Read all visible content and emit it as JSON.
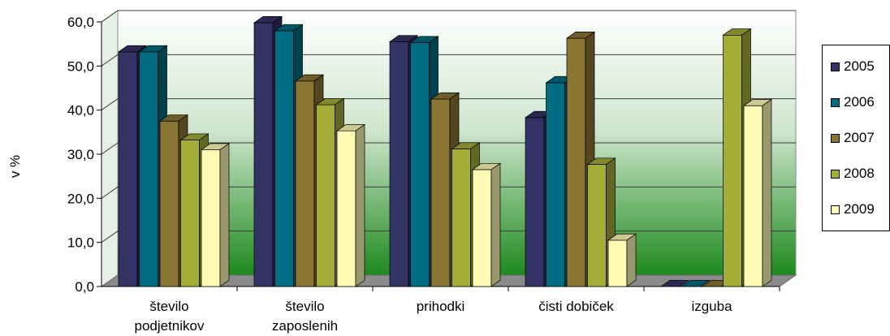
{
  "chart_data": {
    "type": "bar",
    "title": "",
    "xlabel": "",
    "ylabel": "v %",
    "ylim": [
      0,
      60
    ],
    "yticks": [
      "0,0",
      "10,0",
      "20,0",
      "30,0",
      "40,0",
      "50,0",
      "60,0"
    ],
    "grid": true,
    "legend_position": "right",
    "categories": [
      [
        "število",
        "podjetnikov"
      ],
      [
        "število",
        "zaposlenih"
      ],
      [
        "prihodki"
      ],
      [
        "čisti dobiček"
      ],
      [
        "izguba"
      ]
    ],
    "series": [
      {
        "name": "2005",
        "color": "#333366",
        "values": [
          53.2,
          59.8,
          55.5,
          38.3,
          0.0
        ]
      },
      {
        "name": "2006",
        "color": "#006D82",
        "values": [
          53.2,
          58.0,
          55.3,
          46.2,
          0.0
        ]
      },
      {
        "name": "2007",
        "color": "#8B7535",
        "values": [
          37.5,
          46.6,
          42.5,
          56.3,
          0.0
        ]
      },
      {
        "name": "2008",
        "color": "#A3AD38",
        "values": [
          33.2,
          41.2,
          31.2,
          27.7,
          57.0
        ]
      },
      {
        "name": "2009",
        "color": "#FFFBB5",
        "values": [
          31.0,
          35.3,
          26.5,
          10.5,
          41.0
        ]
      }
    ]
  }
}
